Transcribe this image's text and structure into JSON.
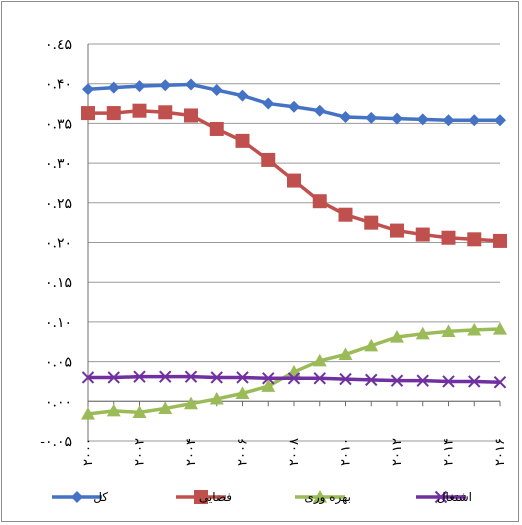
{
  "chart_data": {
    "type": "line",
    "title": "",
    "xlabel": "",
    "ylabel": "",
    "ylim": [
      -0.05,
      0.45
    ],
    "ytick_step": 0.05,
    "y_tick_labels": [
      "٠.٤۵",
      "٠.۴٠",
      "٠.٣۵",
      "٠.٣٠",
      "٠.٢۵",
      "٠.٢٠",
      "٠.١۵",
      "٠.١٠",
      "٠.٠۵",
      "٠.٠٠",
      "-٠.٠۵"
    ],
    "x": [
      2000,
      2001,
      2002,
      2003,
      2004,
      2005,
      2006,
      2007,
      2008,
      2009,
      2010,
      2011,
      2012,
      2013,
      2014,
      2015,
      2016
    ],
    "x_tick_labels": [
      "٢٠٠٠",
      "٢٠٠٢",
      "٢٠٠۴",
      "٢٠٠۶",
      "٢٠٠٨",
      "٢٠١٠",
      "٢٠١٢",
      "٢٠١۴",
      "٢٠١۶"
    ],
    "grid": "horizontal",
    "legend_position": "bottom",
    "series": [
      {
        "name": "کل",
        "color": "#4472c4",
        "marker": "diamond",
        "values": [
          0.393,
          0.395,
          0.397,
          0.398,
          0.399,
          0.392,
          0.385,
          0.375,
          0.371,
          0.366,
          0.358,
          0.357,
          0.356,
          0.355,
          0.354,
          0.354,
          0.354
        ]
      },
      {
        "name": "فضایی",
        "color": "#c0504d",
        "marker": "square",
        "values": [
          0.363,
          0.363,
          0.366,
          0.364,
          0.36,
          0.343,
          0.328,
          0.304,
          0.278,
          0.252,
          0.235,
          0.225,
          0.215,
          0.21,
          0.206,
          0.204,
          0.202
        ]
      },
      {
        "name": "بهره وری",
        "color": "#9bbb59",
        "marker": "triangle",
        "values": [
          -0.016,
          -0.012,
          -0.014,
          -0.009,
          -0.003,
          0.003,
          0.01,
          0.019,
          0.037,
          0.051,
          0.059,
          0.07,
          0.081,
          0.085,
          0.088,
          0.09,
          0.091
        ]
      },
      {
        "name": "اشتغال",
        "color": "#7030a0",
        "marker": "x",
        "values": [
          0.03,
          0.03,
          0.031,
          0.031,
          0.031,
          0.03,
          0.03,
          0.029,
          0.029,
          0.029,
          0.028,
          0.027,
          0.026,
          0.026,
          0.025,
          0.025,
          0.024
        ]
      }
    ]
  }
}
